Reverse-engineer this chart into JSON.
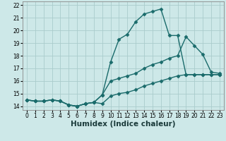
{
  "xlabel": "Humidex (Indice chaleur)",
  "xlim": [
    -0.5,
    23.5
  ],
  "ylim": [
    13.7,
    22.3
  ],
  "yticks": [
    14,
    15,
    16,
    17,
    18,
    19,
    20,
    21,
    22
  ],
  "xticks": [
    0,
    1,
    2,
    3,
    4,
    5,
    6,
    7,
    8,
    9,
    10,
    11,
    12,
    13,
    14,
    15,
    16,
    17,
    18,
    19,
    20,
    21,
    22,
    23
  ],
  "bg_color": "#cde8e8",
  "grid_color": "#aacccc",
  "line_color": "#1a6b6b",
  "line1_x": [
    0,
    1,
    2,
    3,
    4,
    5,
    6,
    7,
    8,
    9,
    10,
    11,
    12,
    13,
    14,
    15,
    16,
    17,
    18,
    19,
    20,
    21,
    22,
    23
  ],
  "line1_y": [
    14.5,
    14.4,
    14.4,
    14.5,
    14.4,
    14.1,
    14.0,
    14.2,
    14.3,
    14.2,
    14.8,
    15.0,
    15.1,
    15.3,
    15.6,
    15.8,
    16.0,
    16.2,
    16.4,
    16.5,
    16.5,
    16.5,
    16.5,
    16.5
  ],
  "line2_x": [
    0,
    1,
    2,
    3,
    4,
    5,
    6,
    7,
    8,
    9,
    10,
    11,
    12,
    13,
    14,
    15,
    16,
    17,
    18,
    19,
    20,
    21,
    22,
    23
  ],
  "line2_y": [
    14.5,
    14.4,
    14.4,
    14.5,
    14.4,
    14.1,
    14.0,
    14.2,
    14.3,
    14.9,
    16.0,
    16.2,
    16.4,
    16.6,
    17.0,
    17.3,
    17.5,
    17.8,
    18.0,
    19.5,
    18.8,
    18.1,
    16.7,
    16.6
  ],
  "line3_x": [
    0,
    1,
    2,
    3,
    4,
    5,
    6,
    7,
    8,
    9,
    10,
    11,
    12,
    13,
    14,
    15,
    16,
    17,
    18,
    19,
    20,
    21,
    22,
    23
  ],
  "line3_y": [
    14.5,
    14.4,
    14.4,
    14.5,
    14.4,
    14.1,
    14.0,
    14.2,
    14.3,
    14.9,
    17.5,
    19.3,
    19.7,
    20.7,
    21.3,
    21.5,
    21.7,
    19.6,
    19.6,
    16.5,
    16.5,
    16.5,
    16.5,
    16.5
  ],
  "marker": "D",
  "markersize": 2.5,
  "linewidth": 1.0,
  "tick_fontsize": 5.5,
  "xlabel_fontsize": 7.5
}
